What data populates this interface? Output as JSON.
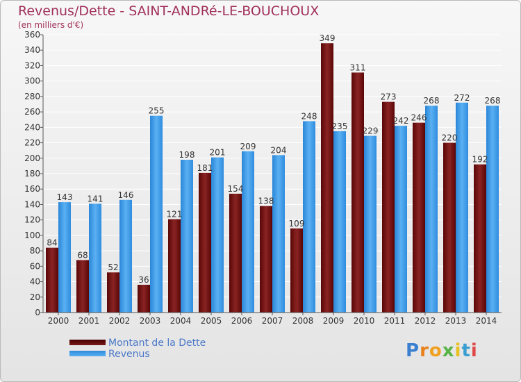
{
  "header": {
    "title": "Revenus/Dette - SAINT-ANDRé-LE-BOUCHOUX",
    "subtitle": "(en milliers d'€)"
  },
  "legend": {
    "items": [
      {
        "label": "Montant de la Dette",
        "color": "#6b0f0f"
      },
      {
        "label": "Revenus",
        "color": "#3a98e6"
      }
    ]
  },
  "logo": {
    "text": "Proxiti"
  },
  "colors": {
    "title": "#a0305a",
    "dette": "#6b0f0f",
    "revenus": "#3a98e6",
    "grid": "#ffffff",
    "axis": "#555555"
  },
  "chart_data": {
    "type": "bar",
    "title": "Revenus/Dette - SAINT-ANDRé-LE-BOUCHOUX",
    "subtitle": "(en milliers d'€)",
    "xlabel": "",
    "ylabel": "",
    "categories": [
      "2000",
      "2001",
      "2002",
      "2003",
      "2004",
      "2005",
      "2006",
      "2007",
      "2008",
      "2009",
      "2010",
      "2011",
      "2012",
      "2013",
      "2014"
    ],
    "series": [
      {
        "name": "Montant de la Dette",
        "values": [
          84,
          68,
          52,
          36,
          121,
          181,
          154,
          138,
          109,
          349,
          311,
          273,
          246,
          220,
          192
        ]
      },
      {
        "name": "Revenus",
        "values": [
          143,
          141,
          146,
          255,
          198,
          201,
          209,
          204,
          248,
          235,
          229,
          242,
          268,
          272,
          268
        ]
      }
    ],
    "ylim": [
      0,
      360
    ],
    "yticks": [
      0,
      20,
      40,
      60,
      80,
      100,
      120,
      140,
      160,
      180,
      200,
      220,
      240,
      260,
      280,
      300,
      320,
      340,
      360
    ],
    "grid": true,
    "legend_position": "bottom-left"
  }
}
